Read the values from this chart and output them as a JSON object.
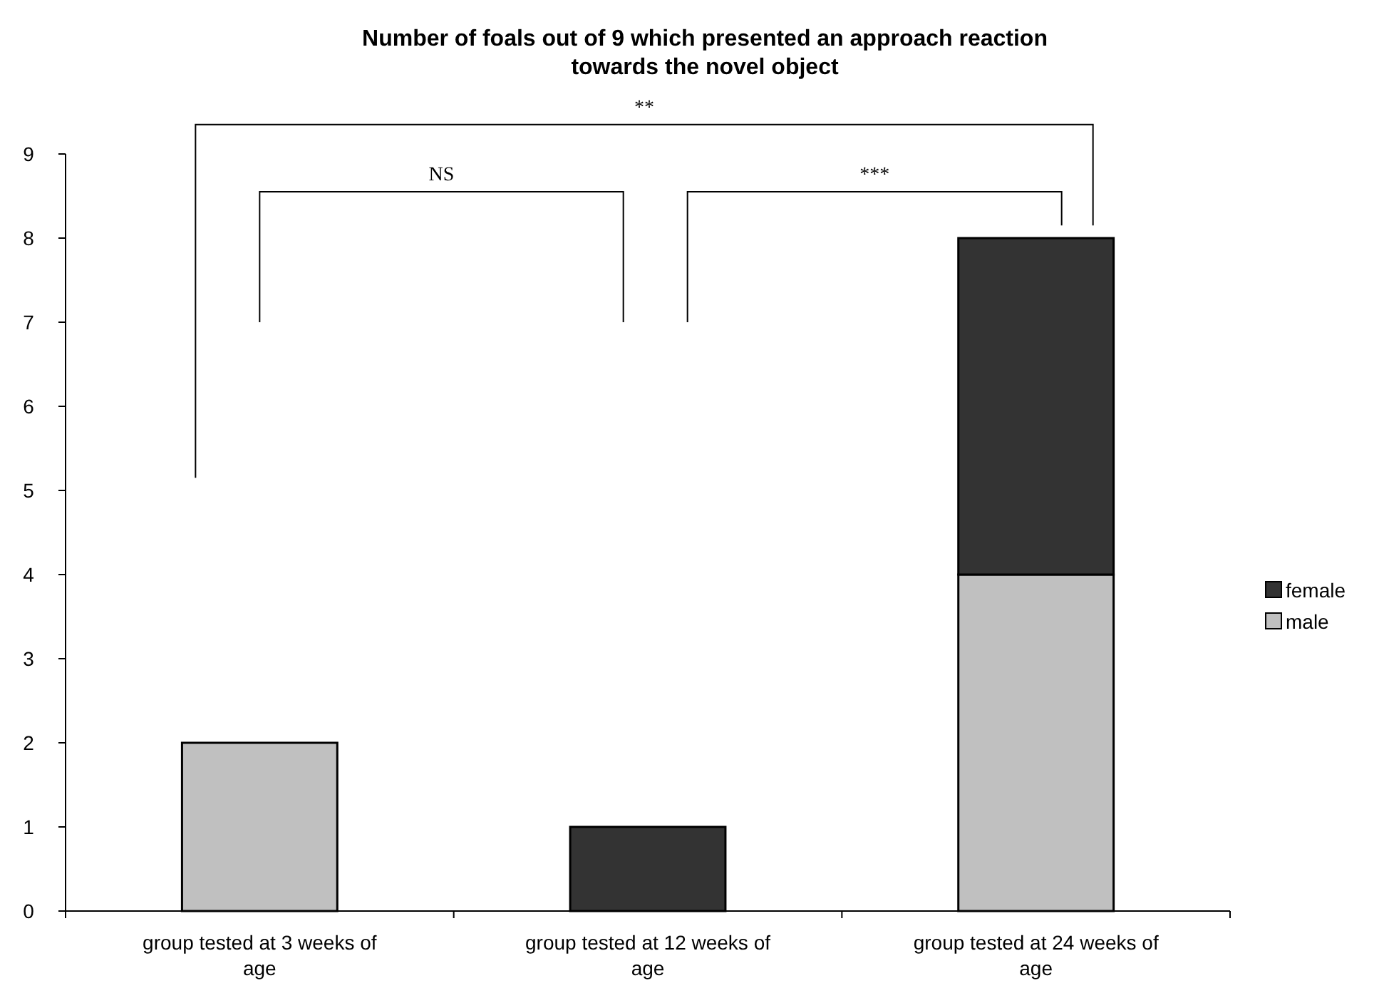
{
  "chart_data": {
    "type": "bar",
    "title": "Number of foals out of 9 which presented an approach reaction towards the novel object",
    "categories": [
      "group tested at 3 weeks of age",
      "group tested at 12 weeks of age",
      "group tested at 24 weeks of age"
    ],
    "series": [
      {
        "name": "male",
        "color": "#c0c0c0",
        "values": [
          2,
          0,
          4
        ]
      },
      {
        "name": "female",
        "color": "#333333",
        "values": [
          0,
          1,
          4
        ]
      }
    ],
    "stacked": true,
    "ylim": [
      0,
      9
    ],
    "yticks": [
      0,
      1,
      2,
      3,
      4,
      5,
      6,
      7,
      8,
      9
    ],
    "grid": false,
    "legend": "right",
    "annotations": [
      "**",
      "NS",
      "***"
    ]
  }
}
